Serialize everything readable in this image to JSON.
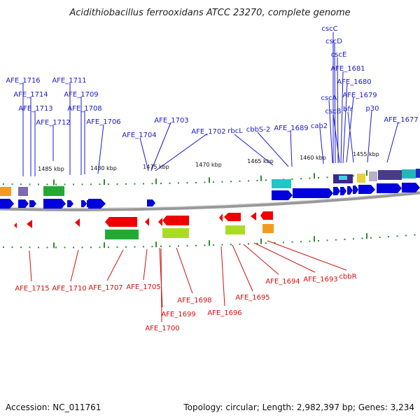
{
  "title": "Acidithiobacillus ferrooxidans ATCC 23270, complete genome",
  "footer": {
    "accession": "Accession: NC_011761",
    "summary": "Topology: circular; Length: 2,982,397 bp; Genes: 3,234"
  },
  "colors": {
    "forward_label": "#1a1acc",
    "reverse_label": "#d01010",
    "backbone": "#888888",
    "tick": "#2e8b2e",
    "gene_forward": "#0000dd",
    "gene_reverse": "#ee0000"
  },
  "ticks": [
    "1485 kbp",
    "1480 kbp",
    "1475 kbp",
    "1470 kbp",
    "1465 kbp",
    "1460 kbp",
    "1455 kbp"
  ],
  "top_labels": [
    "cscC",
    "cscD",
    "cscE",
    "AFE_1681",
    "AFE_1680",
    "cscA",
    "AFE_1679",
    "cscB",
    "bfr",
    "p30",
    "AFE_1677",
    "AFE_1716",
    "AFE_1711",
    "AFE_1714",
    "AFE_1709",
    "AFE_1713",
    "AFE_1708",
    "AFE_1712",
    "AFE_1706",
    "AFE_1703",
    "AFE_1704",
    "AFE_1702",
    "rbcL",
    "cbbS-2",
    "AFE_1689",
    "cab2"
  ],
  "bottom_labels": [
    "AFE_1715",
    "AFE_1710",
    "AFE_1707",
    "AFE_1705",
    "AFE_1699",
    "AFE_1700",
    "AFE_1698",
    "AFE_1696",
    "AFE_1695",
    "AFE_1694",
    "AFE_1693",
    "cbbR"
  ]
}
